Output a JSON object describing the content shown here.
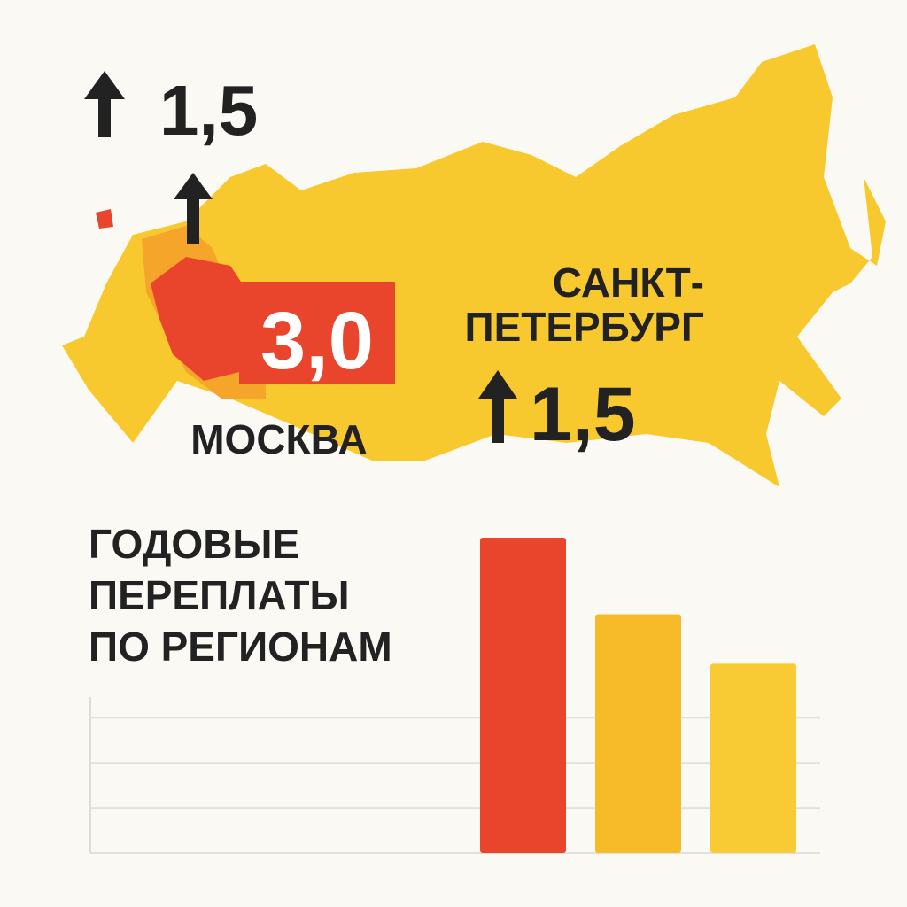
{
  "map": {
    "top_value": "1,5",
    "moscow_value": "3,0",
    "moscow_label": "МОСКВА",
    "spb_label_lines": [
      "САНКТ-",
      "ПЕТЕРБУРГ"
    ],
    "spb_value": "1,5"
  },
  "chart_data": {
    "type": "bar",
    "title_lines": [
      "ГОДОВЫЕ",
      "ПЕРЕПЛАТЫ",
      "ПО РЕГИОНАМ"
    ],
    "categories": [
      null,
      null,
      null
    ],
    "values": [
      7,
      5.3,
      4.2
    ],
    "colors": [
      "#e8452c",
      "#f7bb2a",
      "#f8cb35"
    ],
    "ylim": [
      0,
      7
    ],
    "yticks": [
      0,
      1,
      2,
      3
    ],
    "grid": true
  }
}
